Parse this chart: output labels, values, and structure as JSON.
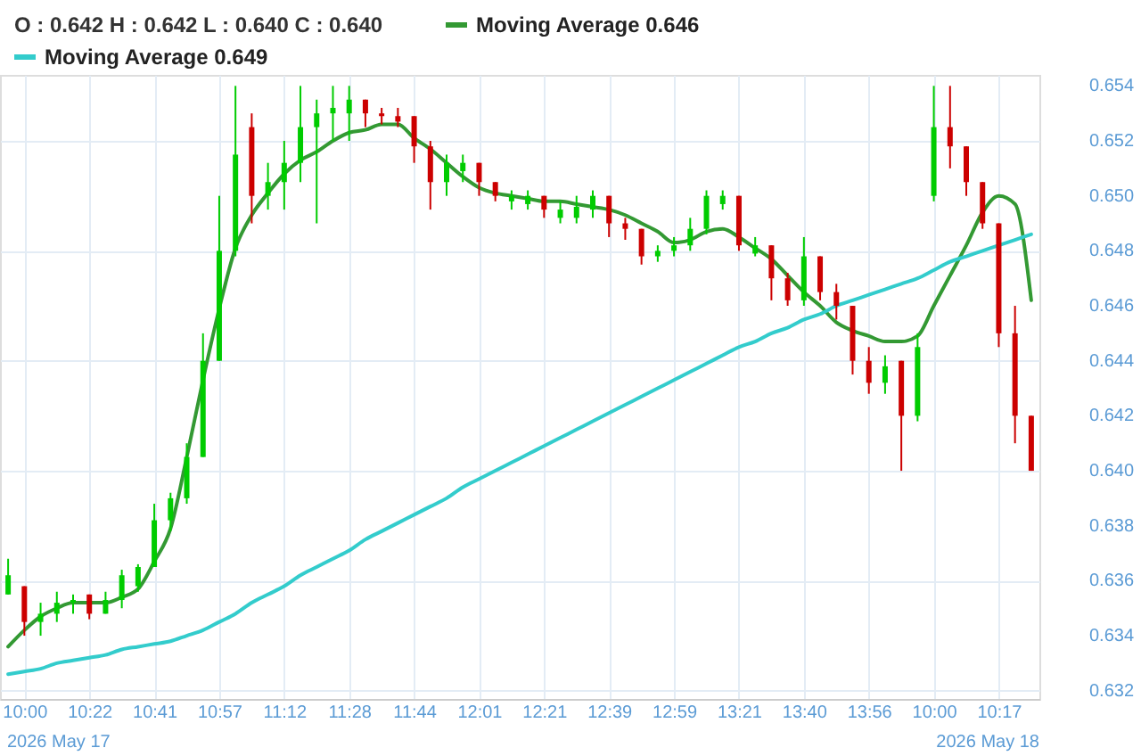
{
  "chart_data": {
    "type": "candlestick",
    "title": "O : 0.642  H : 0.642  L : 0.640  C : 0.640",
    "categories": [
      null,
      "10:00",
      null,
      null,
      null,
      "10:22",
      null,
      null,
      null,
      "10:41",
      null,
      null,
      null,
      "10:57",
      null,
      null,
      null,
      "11:12",
      null,
      null,
      null,
      "11:28",
      null,
      null,
      null,
      "11:44",
      null,
      null,
      null,
      "12:01",
      null,
      null,
      null,
      "12:21",
      null,
      null,
      null,
      "12:39",
      null,
      null,
      null,
      "12:59",
      null,
      null,
      null,
      "13:21",
      null,
      null,
      null,
      "13:40",
      null,
      null,
      null,
      "13:56",
      null,
      null,
      null,
      "10:00",
      null,
      null,
      null,
      "10:17",
      null,
      null
    ],
    "ohlc": [
      [
        0.6355,
        0.6368,
        0.6355,
        0.6362
      ],
      [
        0.6358,
        0.6358,
        0.634,
        0.6345
      ],
      [
        0.6345,
        0.6352,
        0.634,
        0.6348
      ],
      [
        0.6348,
        0.6356,
        0.6345,
        0.6352
      ],
      [
        0.6352,
        0.6355,
        0.6348,
        0.6353
      ],
      [
        0.6355,
        0.6355,
        0.6346,
        0.6348
      ],
      [
        0.6348,
        0.6356,
        0.6348,
        0.6353
      ],
      [
        0.6353,
        0.6364,
        0.635,
        0.6362
      ],
      [
        0.6358,
        0.6366,
        0.6356,
        0.6365
      ],
      [
        0.6365,
        0.6388,
        0.6365,
        0.6382
      ],
      [
        0.6382,
        0.6392,
        0.6378,
        0.639
      ],
      [
        0.639,
        0.641,
        0.6388,
        0.6405
      ],
      [
        0.6405,
        0.645,
        0.6405,
        0.644
      ],
      [
        0.644,
        0.65,
        0.644,
        0.648
      ],
      [
        0.648,
        0.654,
        0.6478,
        0.6515
      ],
      [
        0.6525,
        0.653,
        0.649,
        0.65
      ],
      [
        0.65,
        0.6512,
        0.6495,
        0.6505
      ],
      [
        0.6505,
        0.652,
        0.6495,
        0.6512
      ],
      [
        0.6512,
        0.654,
        0.6505,
        0.6525
      ],
      [
        0.6525,
        0.6535,
        0.649,
        0.653
      ],
      [
        0.653,
        0.654,
        0.652,
        0.6532
      ],
      [
        0.653,
        0.654,
        0.652,
        0.6535
      ],
      [
        0.6535,
        0.6535,
        0.6525,
        0.653
      ],
      [
        0.653,
        0.6532,
        0.6526,
        0.6529
      ],
      [
        0.6529,
        0.6532,
        0.6525,
        0.6527
      ],
      [
        0.6529,
        0.6529,
        0.6512,
        0.6518
      ],
      [
        0.6518,
        0.652,
        0.6495,
        0.6505
      ],
      [
        0.6505,
        0.6515,
        0.65,
        0.6512
      ],
      [
        0.6509,
        0.6515,
        0.6505,
        0.6512
      ],
      [
        0.6512,
        0.6512,
        0.65,
        0.6505
      ],
      [
        0.6505,
        0.6505,
        0.6498,
        0.65
      ],
      [
        0.6498,
        0.6502,
        0.6495,
        0.65
      ],
      [
        0.6497,
        0.6502,
        0.6495,
        0.65
      ],
      [
        0.65,
        0.65,
        0.6492,
        0.6495
      ],
      [
        0.6492,
        0.6498,
        0.649,
        0.6495
      ],
      [
        0.6492,
        0.65,
        0.649,
        0.6496
      ],
      [
        0.6495,
        0.6502,
        0.6492,
        0.65
      ],
      [
        0.65,
        0.65,
        0.6485,
        0.649
      ],
      [
        0.649,
        0.6492,
        0.6484,
        0.6488
      ],
      [
        0.6488,
        0.6488,
        0.6475,
        0.6478
      ],
      [
        0.6478,
        0.6482,
        0.6476,
        0.648
      ],
      [
        0.648,
        0.6485,
        0.6478,
        0.6482
      ],
      [
        0.6482,
        0.6492,
        0.648,
        0.6488
      ],
      [
        0.6488,
        0.6502,
        0.6486,
        0.65
      ],
      [
        0.6497,
        0.6502,
        0.6495,
        0.65
      ],
      [
        0.65,
        0.65,
        0.648,
        0.6482
      ],
      [
        0.6479,
        0.6485,
        0.6478,
        0.6482
      ],
      [
        0.6482,
        0.6482,
        0.6462,
        0.647
      ],
      [
        0.647,
        0.6472,
        0.646,
        0.6462
      ],
      [
        0.6462,
        0.6485,
        0.646,
        0.6478
      ],
      [
        0.6478,
        0.6478,
        0.6462,
        0.6465
      ],
      [
        0.6465,
        0.6468,
        0.6455,
        0.646
      ],
      [
        0.646,
        0.646,
        0.6435,
        0.644
      ],
      [
        0.644,
        0.6445,
        0.6428,
        0.6432
      ],
      [
        0.6432,
        0.6442,
        0.6428,
        0.6438
      ],
      [
        0.644,
        0.644,
        0.64,
        0.642
      ],
      [
        0.642,
        0.645,
        0.6418,
        0.6445
      ],
      [
        0.65,
        0.654,
        0.6498,
        0.6525
      ],
      [
        0.6525,
        0.654,
        0.651,
        0.6518
      ],
      [
        0.6518,
        0.6518,
        0.65,
        0.6505
      ],
      [
        0.6505,
        0.6505,
        0.6488,
        0.649
      ],
      [
        0.649,
        0.649,
        0.6445,
        0.645
      ],
      [
        0.645,
        0.646,
        0.641,
        0.642
      ],
      [
        0.642,
        0.642,
        0.64,
        0.64
      ]
    ],
    "colors": [
      "#00cc00",
      "#cc0000",
      "#00cc00",
      "#00cc00",
      "#00cc00",
      "#cc0000",
      "#00cc00",
      "#00cc00",
      "#00cc00",
      "#00cc00",
      "#00cc00",
      "#00cc00",
      "#00cc00",
      "#00cc00",
      "#00cc00",
      "#cc0000",
      "#00cc00",
      "#00cc00",
      "#00cc00",
      "#00cc00",
      "#00cc00",
      "#00cc00",
      "#cc0000",
      "#cc0000",
      "#cc0000",
      "#cc0000",
      "#cc0000",
      "#00cc00",
      "#00cc00",
      "#cc0000",
      "#cc0000",
      "#00cc00",
      "#00cc00",
      "#cc0000",
      "#00cc00",
      "#00cc00",
      "#00cc00",
      "#cc0000",
      "#cc0000",
      "#cc0000",
      "#00cc00",
      "#00cc00",
      "#00cc00",
      "#00cc00",
      "#00cc00",
      "#cc0000",
      "#00cc00",
      "#cc0000",
      "#cc0000",
      "#00cc00",
      "#cc0000",
      "#cc0000",
      "#cc0000",
      "#cc0000",
      "#00cc00",
      "#cc0000",
      "#00cc00",
      "#00cc00",
      "#cc0000",
      "#cc0000",
      "#cc0000",
      "#cc0000",
      "#cc0000",
      "#cc0000"
    ],
    "series": [
      {
        "name": "Moving Average 0.646",
        "type": "line",
        "color": "#339933",
        "values": [
          0.6336,
          0.6342,
          0.6347,
          0.635,
          0.6352,
          0.6352,
          0.6352,
          0.6354,
          0.6357,
          0.6367,
          0.6379,
          0.6405,
          0.6433,
          0.6459,
          0.6481,
          0.6493,
          0.6501,
          0.6508,
          0.6513,
          0.6516,
          0.652,
          0.6523,
          0.6524,
          0.6526,
          0.6526,
          0.6521,
          0.6517,
          0.6512,
          0.6507,
          0.6503,
          0.6501,
          0.65,
          0.6499,
          0.6498,
          0.6498,
          0.6497,
          0.6496,
          0.6495,
          0.6493,
          0.649,
          0.6487,
          0.6483,
          0.6484,
          0.6487,
          0.6488,
          0.6485,
          0.6481,
          0.6477,
          0.6471,
          0.6465,
          0.646,
          0.6454,
          0.6451,
          0.6449,
          0.6447,
          0.6447,
          0.6449,
          0.646,
          0.6471,
          0.6482,
          0.6494,
          0.65,
          0.6497,
          0.6462
        ]
      },
      {
        "name": "Moving Average 0.649",
        "type": "line",
        "color": "#33cccc",
        "values": [
          0.6326,
          0.6327,
          0.6328,
          0.633,
          0.6331,
          0.6332,
          0.6333,
          0.6335,
          0.6336,
          0.6337,
          0.6338,
          0.634,
          0.6342,
          0.6345,
          0.6348,
          0.6352,
          0.6355,
          0.6358,
          0.6362,
          0.6365,
          0.6368,
          0.6371,
          0.6375,
          0.6378,
          0.6381,
          0.6384,
          0.6387,
          0.639,
          0.6394,
          0.6397,
          0.64,
          0.6403,
          0.6406,
          0.6409,
          0.6412,
          0.6415,
          0.6418,
          0.6421,
          0.6424,
          0.6427,
          0.643,
          0.6433,
          0.6436,
          0.6439,
          0.6442,
          0.6445,
          0.6447,
          0.645,
          0.6452,
          0.6455,
          0.6457,
          0.646,
          0.6462,
          0.6464,
          0.6466,
          0.6468,
          0.647,
          0.6473,
          0.6476,
          0.6478,
          0.648,
          0.6482,
          0.6484,
          0.6486
        ]
      }
    ],
    "ylim": [
      0.6317,
      0.6544
    ],
    "yticks": [
      {
        "value": 0.632,
        "label": "0.632"
      },
      {
        "value": 0.634,
        "label": "0.634"
      },
      {
        "value": 0.636,
        "label": "0.636"
      },
      {
        "value": 0.638,
        "label": "0.638"
      },
      {
        "value": 0.64,
        "label": "0.640"
      },
      {
        "value": 0.642,
        "label": "0.642"
      },
      {
        "value": 0.644,
        "label": "0.644"
      },
      {
        "value": 0.646,
        "label": "0.646"
      },
      {
        "value": 0.648,
        "label": "0.648"
      },
      {
        "value": 0.65,
        "label": "0.650"
      },
      {
        "value": 0.652,
        "label": "0.652"
      },
      {
        "value": 0.654,
        "label": "0.654"
      }
    ],
    "grid": true,
    "legend": "top left",
    "marker": "none",
    "line_style": "solid",
    "annotations": [
      "2026 May 17",
      "2026 May 18"
    ]
  }
}
